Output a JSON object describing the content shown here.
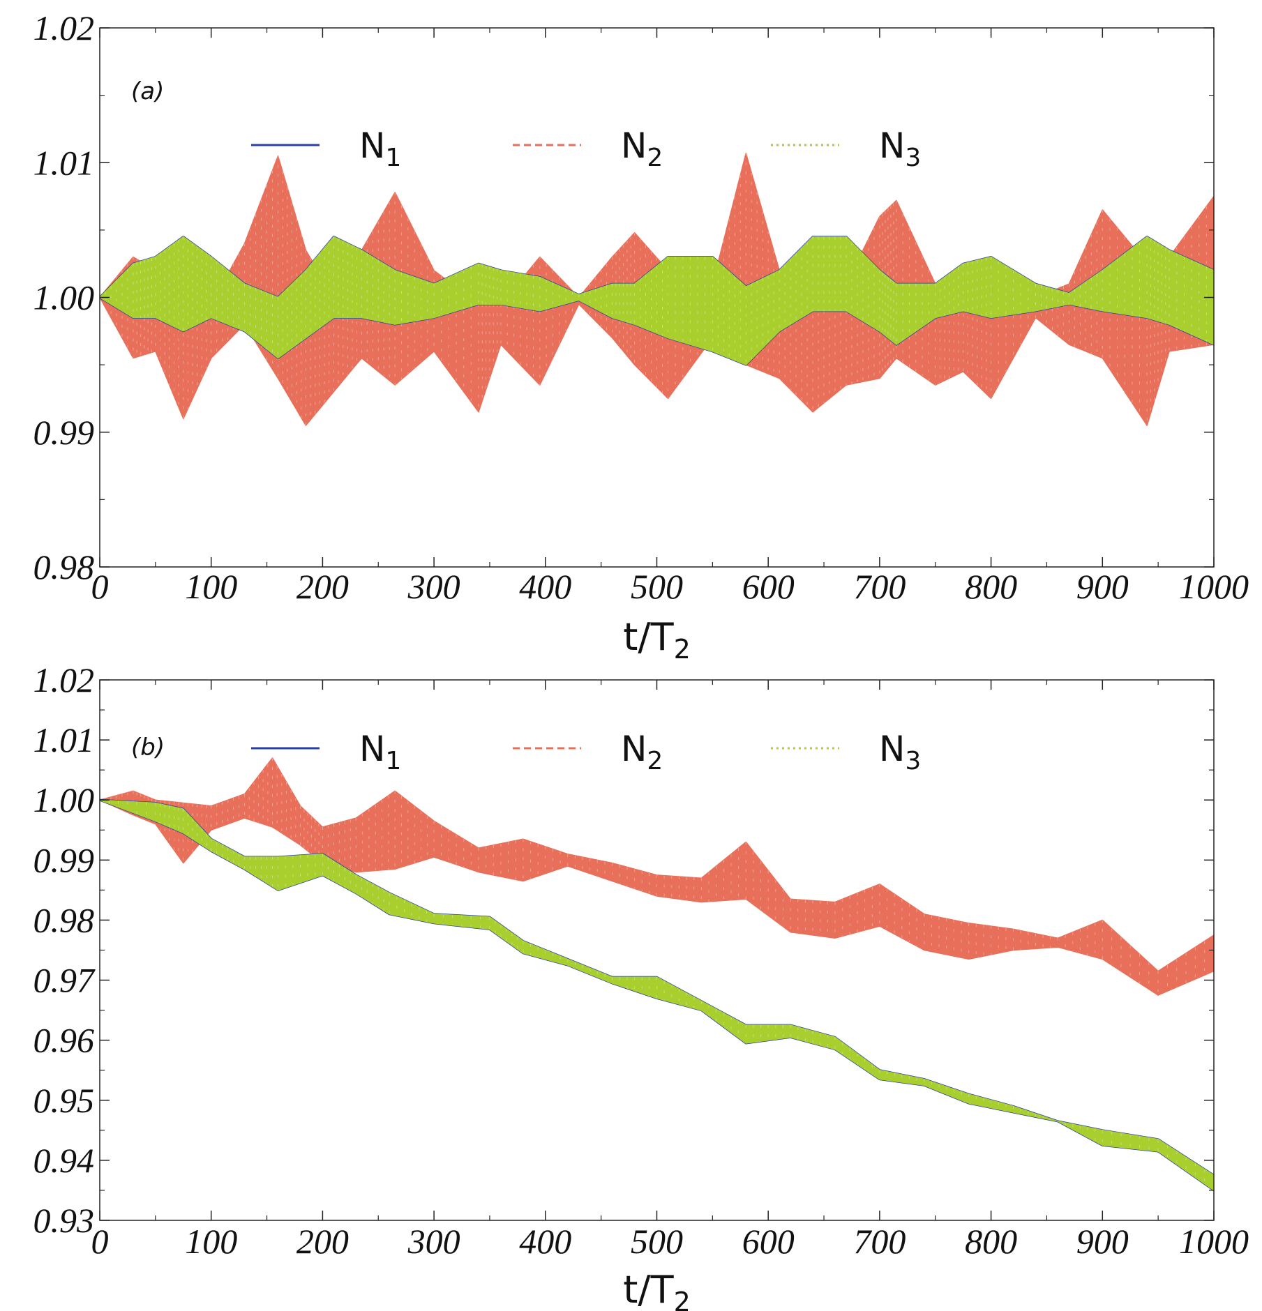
{
  "chart_data": [
    {
      "type": "line",
      "panel_label": "(a)",
      "xlabel": "t/T",
      "xlabel_sub": "2",
      "xlim": [
        0,
        1000
      ],
      "ylim": [
        0.98,
        1.02
      ],
      "xticks": [
        0,
        100,
        200,
        300,
        400,
        500,
        600,
        700,
        800,
        900,
        1000
      ],
      "xtick_labels": [
        "0",
        "100",
        "200",
        "300",
        "400",
        "500",
        "600",
        "700",
        "800",
        "900",
        "1000"
      ],
      "yticks": [
        0.98,
        0.99,
        1.0,
        1.01,
        1.02
      ],
      "ytick_labels": [
        "0.98",
        "0.99",
        "1.00",
        "1.01",
        "1.02"
      ],
      "legend": [
        {
          "name": "N",
          "sub": "1",
          "color": "#2a3fa8",
          "dash": "solid"
        },
        {
          "name": "N",
          "sub": "2",
          "color": "#e8705a",
          "dash": "dashed"
        },
        {
          "name": "N",
          "sub": "3",
          "color": "#a8cf2e",
          "dash": "dotted"
        }
      ],
      "series": [
        {
          "name": "N2",
          "color": "#e8705a",
          "description": "rapid oscillation band (upper/lower envelope)",
          "x": [
            0,
            30,
            50,
            75,
            100,
            130,
            160,
            185,
            210,
            235,
            265,
            300,
            340,
            360,
            395,
            430,
            460,
            480,
            510,
            550,
            580,
            610,
            640,
            670,
            700,
            715,
            750,
            775,
            800,
            840,
            870,
            900,
            940,
            960,
            1000
          ],
          "upper": [
            1.0,
            1.003,
            1.002,
            1.0,
            0.9995,
            1.004,
            1.0105,
            1.0035,
            1.0,
            1.0035,
            1.0078,
            1.002,
            0.9995,
            0.9995,
            1.003,
            1.0,
            1.003,
            1.0048,
            1.002,
            1.001,
            1.0107,
            1.002,
            1.0,
            1.001,
            1.006,
            1.0072,
            1.001,
            1.0008,
            1.0,
            1.0,
            1.001,
            1.0065,
            1.0025,
            1.003,
            1.0075
          ],
          "lower": [
            1.0,
            0.9955,
            0.996,
            0.991,
            0.9955,
            0.998,
            0.994,
            0.9905,
            0.993,
            0.9955,
            0.9935,
            0.996,
            0.9915,
            0.9965,
            0.9935,
            0.9995,
            0.997,
            0.995,
            0.9925,
            0.997,
            0.995,
            0.994,
            0.9915,
            0.9935,
            0.994,
            0.9955,
            0.9935,
            0.9945,
            0.9925,
            0.9985,
            0.9965,
            0.9955,
            0.9905,
            0.996,
            0.9965
          ]
        },
        {
          "name": "N1",
          "color": "#2a3fa8",
          "description": "rapid oscillation band (upper/lower envelope), nearly coincident with N3",
          "x": [
            0,
            30,
            50,
            75,
            100,
            130,
            160,
            185,
            210,
            235,
            265,
            300,
            340,
            360,
            395,
            430,
            460,
            480,
            510,
            550,
            580,
            610,
            640,
            670,
            700,
            715,
            750,
            775,
            800,
            840,
            870,
            900,
            940,
            960,
            1000
          ],
          "upper": [
            1.0,
            1.0025,
            1.003,
            1.0045,
            1.003,
            1.001,
            1.0,
            1.002,
            1.0045,
            1.0035,
            1.002,
            1.001,
            1.0025,
            1.002,
            1.0015,
            1.0002,
            1.001,
            1.001,
            1.003,
            1.003,
            1.0008,
            1.002,
            1.0045,
            1.0045,
            1.002,
            1.001,
            1.001,
            1.0025,
            1.003,
            1.001,
            1.0003,
            1.002,
            1.0045,
            1.0035,
            1.002
          ],
          "lower": [
            1.0,
            0.9985,
            0.9985,
            0.9975,
            0.9985,
            0.9975,
            0.9955,
            0.997,
            0.9985,
            0.9985,
            0.998,
            0.9985,
            0.9995,
            0.9995,
            0.999,
            0.9998,
            0.9985,
            0.998,
            0.997,
            0.996,
            0.995,
            0.9975,
            0.999,
            0.999,
            0.9975,
            0.9965,
            0.9985,
            0.999,
            0.9985,
            0.999,
            0.9995,
            0.999,
            0.9985,
            0.998,
            0.9965
          ]
        },
        {
          "name": "N3",
          "color": "#a8cf2e",
          "description": "rapid oscillation band (upper/lower envelope)",
          "x": [
            0,
            30,
            50,
            75,
            100,
            130,
            160,
            185,
            210,
            235,
            265,
            300,
            340,
            360,
            395,
            430,
            460,
            480,
            510,
            550,
            580,
            610,
            640,
            670,
            700,
            715,
            750,
            775,
            800,
            840,
            870,
            900,
            940,
            960,
            1000
          ],
          "upper": [
            1.0,
            1.0025,
            1.003,
            1.0045,
            1.003,
            1.001,
            1.0,
            1.002,
            1.0045,
            1.0035,
            1.002,
            1.001,
            1.0025,
            1.002,
            1.0015,
            1.0002,
            1.001,
            1.001,
            1.003,
            1.003,
            1.0008,
            1.002,
            1.0045,
            1.0045,
            1.002,
            1.001,
            1.001,
            1.0025,
            1.003,
            1.001,
            1.0003,
            1.002,
            1.0045,
            1.0035,
            1.002
          ],
          "lower": [
            1.0,
            0.9985,
            0.9985,
            0.9975,
            0.9985,
            0.9975,
            0.9955,
            0.997,
            0.9985,
            0.9985,
            0.998,
            0.9985,
            0.9995,
            0.9995,
            0.999,
            0.9998,
            0.9985,
            0.998,
            0.997,
            0.996,
            0.995,
            0.9975,
            0.999,
            0.999,
            0.9975,
            0.9965,
            0.9985,
            0.999,
            0.9985,
            0.999,
            0.9995,
            0.999,
            0.9985,
            0.998,
            0.9965
          ]
        }
      ]
    },
    {
      "type": "line",
      "panel_label": "(b)",
      "xlabel": "t/T",
      "xlabel_sub": "2",
      "xlim": [
        0,
        1000
      ],
      "ylim": [
        0.93,
        1.02
      ],
      "xticks": [
        0,
        100,
        200,
        300,
        400,
        500,
        600,
        700,
        800,
        900,
        1000
      ],
      "xtick_labels": [
        "0",
        "100",
        "200",
        "300",
        "400",
        "500",
        "600",
        "700",
        "800",
        "900",
        "1000"
      ],
      "yticks": [
        0.93,
        0.94,
        0.95,
        0.96,
        0.97,
        0.98,
        0.99,
        1.0,
        1.01,
        1.02
      ],
      "ytick_labels": [
        "0.93",
        "0.94",
        "0.95",
        "0.96",
        "0.97",
        "0.98",
        "0.99",
        "1.00",
        "1.01",
        "1.02"
      ],
      "legend": [
        {
          "name": "N",
          "sub": "1",
          "color": "#2a3fa8",
          "dash": "solid"
        },
        {
          "name": "N",
          "sub": "2",
          "color": "#e8705a",
          "dash": "dashed"
        },
        {
          "name": "N",
          "sub": "3",
          "color": "#a8cf2e",
          "dash": "dotted"
        }
      ],
      "series": [
        {
          "name": "N2",
          "color": "#e8705a",
          "description": "rapid oscillation band (upper/lower envelope)",
          "x": [
            0,
            30,
            50,
            75,
            100,
            130,
            155,
            180,
            200,
            230,
            265,
            300,
            340,
            380,
            420,
            460,
            500,
            540,
            580,
            620,
            660,
            700,
            740,
            780,
            820,
            860,
            900,
            950,
            1000
          ],
          "upper": [
            1.0,
            1.0015,
            1.0,
            0.9995,
            0.999,
            1.001,
            1.007,
            0.999,
            0.9955,
            0.997,
            1.0015,
            0.9965,
            0.992,
            0.9935,
            0.991,
            0.9895,
            0.9875,
            0.987,
            0.993,
            0.9835,
            0.983,
            0.986,
            0.981,
            0.9795,
            0.9785,
            0.977,
            0.98,
            0.9715,
            0.9775
          ],
          "lower": [
            1.0,
            0.9975,
            0.996,
            0.9895,
            0.995,
            0.997,
            0.9955,
            0.9925,
            0.9895,
            0.988,
            0.9885,
            0.9905,
            0.988,
            0.9865,
            0.989,
            0.9865,
            0.984,
            0.983,
            0.9835,
            0.978,
            0.977,
            0.979,
            0.975,
            0.9735,
            0.975,
            0.9755,
            0.9735,
            0.9675,
            0.9715
          ]
        },
        {
          "name": "N1",
          "color": "#2a3fa8",
          "description": "rapid oscillation band (upper/lower envelope), nearly coincident with N3",
          "x": [
            0,
            50,
            75,
            100,
            130,
            160,
            200,
            230,
            260,
            300,
            350,
            380,
            420,
            460,
            500,
            540,
            580,
            620,
            660,
            700,
            740,
            780,
            820,
            860,
            900,
            950,
            1000
          ],
          "upper": [
            1.0,
            0.9995,
            0.9985,
            0.9935,
            0.9905,
            0.9905,
            0.991,
            0.9875,
            0.9845,
            0.981,
            0.9805,
            0.9765,
            0.9735,
            0.9705,
            0.9705,
            0.9665,
            0.9625,
            0.9625,
            0.9605,
            0.955,
            0.9535,
            0.951,
            0.949,
            0.9465,
            0.945,
            0.9435,
            0.9375
          ],
          "lower": [
            1.0,
            0.9965,
            0.9945,
            0.9915,
            0.9885,
            0.985,
            0.9875,
            0.9845,
            0.981,
            0.9795,
            0.9785,
            0.9745,
            0.9725,
            0.9695,
            0.967,
            0.965,
            0.9595,
            0.9605,
            0.9585,
            0.9535,
            0.9525,
            0.9495,
            0.948,
            0.9465,
            0.9425,
            0.9415,
            0.935
          ]
        },
        {
          "name": "N3",
          "color": "#a8cf2e",
          "description": "rapid oscillation band (upper/lower envelope)",
          "x": [
            0,
            50,
            75,
            100,
            130,
            160,
            200,
            230,
            260,
            300,
            350,
            380,
            420,
            460,
            500,
            540,
            580,
            620,
            660,
            700,
            740,
            780,
            820,
            860,
            900,
            950,
            1000
          ],
          "upper": [
            1.0,
            0.9995,
            0.9985,
            0.9935,
            0.9905,
            0.9905,
            0.991,
            0.9875,
            0.9845,
            0.981,
            0.9805,
            0.9765,
            0.9735,
            0.9705,
            0.9705,
            0.9665,
            0.9625,
            0.9625,
            0.9605,
            0.955,
            0.9535,
            0.951,
            0.949,
            0.9465,
            0.945,
            0.9435,
            0.9375
          ],
          "lower": [
            1.0,
            0.9965,
            0.9945,
            0.9915,
            0.9885,
            0.985,
            0.9875,
            0.9845,
            0.981,
            0.9795,
            0.9785,
            0.9745,
            0.9725,
            0.9695,
            0.967,
            0.965,
            0.9595,
            0.9605,
            0.9585,
            0.9535,
            0.9525,
            0.9495,
            0.948,
            0.9465,
            0.9425,
            0.9415,
            0.935
          ]
        }
      ]
    }
  ]
}
